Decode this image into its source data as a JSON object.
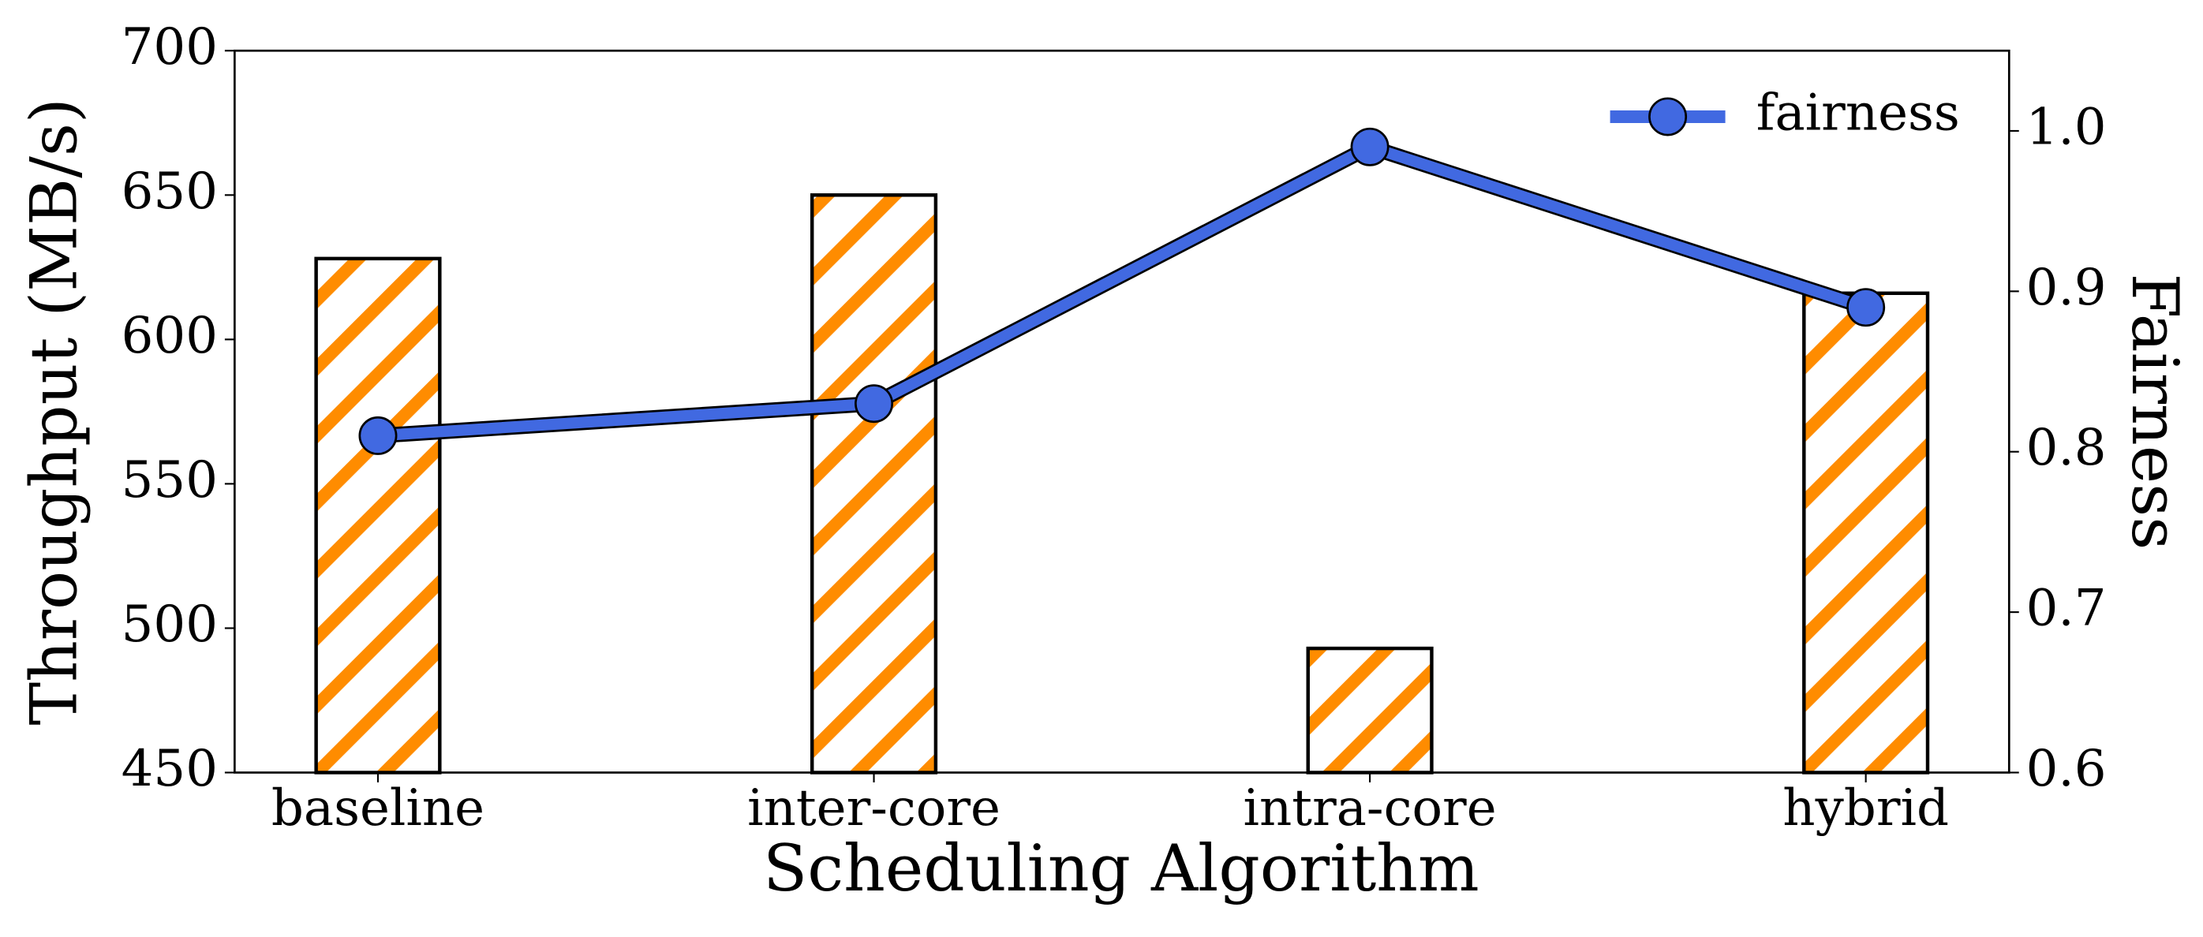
{
  "chart_data": {
    "type": "bar",
    "xlabel": "Scheduling Algorithm",
    "ylabel": "Throughput (MB/s)",
    "y2label": "Fairness",
    "categories": [
      "baseline",
      "inter-core",
      "intra-core",
      "hybrid"
    ],
    "series": [
      {
        "type": "bar",
        "color": "#ff8c00",
        "values": [
          628,
          650,
          493,
          616
        ]
      },
      {
        "type": "line",
        "name": "fairness",
        "color": "#4169e1",
        "axis": "y2",
        "values": [
          0.81,
          0.83,
          0.99,
          0.89
        ]
      }
    ],
    "ylim": [
      450,
      700
    ],
    "yticks": [
      450,
      500,
      550,
      600,
      650,
      700
    ],
    "y2lim": [
      0.6,
      1.05
    ],
    "y2ticks": [
      0.6,
      0.7,
      0.8,
      0.9,
      {
        "value": 1.0,
        "label": "1.0"
      }
    ],
    "legend": "upper right"
  }
}
